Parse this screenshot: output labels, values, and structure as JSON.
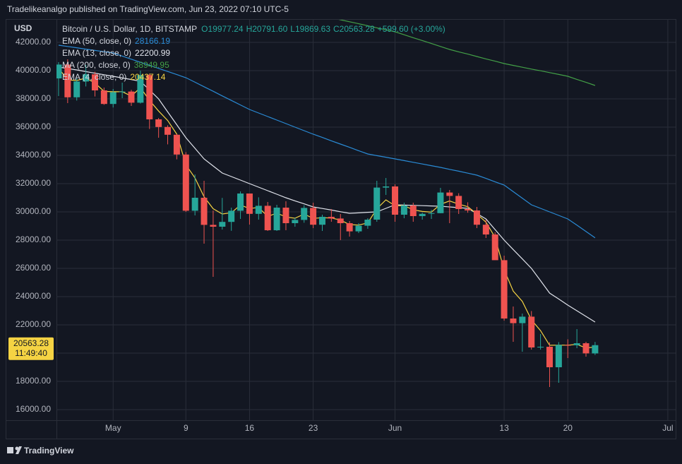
{
  "header": {
    "published": "Tradelikeanalgo published on TradingView.com, Jun 23, 2022 07:10 UTC-5"
  },
  "footer": {
    "brand": "TradingView"
  },
  "chart_data": {
    "type": "candlestick",
    "title": "Bitcoin / U.S. Dollar, 1D, BITSTAMP",
    "ohlc_text": [
      "O19977.24",
      "H20791.60",
      "L19869.63",
      "C20563.28",
      "+599.60 (+3.00%)"
    ],
    "y_axis_label": "USD",
    "up_color": "#26a69a",
    "down_color": "#ef5350",
    "open": [
      39450,
      40430,
      38110,
      39230,
      39740,
      38600,
      37640,
      38470,
      38520,
      37730,
      39690,
      36550,
      36010,
      35460,
      34060,
      30080,
      31000,
      29080,
      28950,
      29290,
      30080,
      31300,
      29860,
      30430,
      28700,
      30300,
      29200,
      29430,
      30280,
      29090,
      29650,
      29530,
      29200,
      28620,
      29020,
      29450,
      31720,
      31800,
      29800,
      30450,
      29700,
      29860,
      29910,
      31370,
      31130,
      30200,
      30100,
      29090,
      28400,
      26580,
      22450,
      22120,
      22580,
      20400,
      20450,
      19000,
      20580,
      20560,
      20700,
      19977.24
    ],
    "high": [
      40600,
      40800,
      39450,
      40400,
      39920,
      38800,
      38700,
      39150,
      38640,
      40000,
      39790,
      36650,
      36130,
      35500,
      34230,
      32650,
      32200,
      30100,
      30990,
      30300,
      31450,
      31300,
      31030,
      30700,
      30500,
      30750,
      29600,
      30470,
      30650,
      29800,
      30200,
      29850,
      29350,
      29200,
      29550,
      32200,
      32400,
      31950,
      30650,
      30650,
      29950,
      30150,
      31700,
      31550,
      31320,
      30680,
      30350,
      29450,
      28550,
      26900,
      23300,
      22800,
      22980,
      21350,
      20770,
      20780,
      20980,
      21700,
      20800,
      20791.6
    ],
    "low": [
      38200,
      37700,
      37880,
      38880,
      38170,
      37580,
      37390,
      38050,
      37500,
      37670,
      35870,
      35250,
      34780,
      33720,
      30000,
      29750,
      27750,
      25400,
      28750,
      28660,
      29500,
      29100,
      29450,
      28650,
      28650,
      28700,
      28950,
      29230,
      28850,
      28650,
      29300,
      28000,
      28250,
      28500,
      28800,
      29300,
      31200,
      29300,
      29550,
      29300,
      29450,
      29500,
      29900,
      29200,
      29850,
      29940,
      28850,
      28150,
      26600,
      22300,
      20800,
      20100,
      20250,
      20250,
      17600,
      17900,
      19650,
      20350,
      19750,
      19869.63
    ],
    "close": [
      40430,
      38110,
      39230,
      39740,
      38600,
      37640,
      38470,
      38520,
      37730,
      39690,
      36550,
      36010,
      35460,
      34060,
      30080,
      31000,
      29080,
      28950,
      29290,
      30080,
      31300,
      29860,
      30430,
      28700,
      30300,
      29200,
      29430,
      30280,
      29090,
      29650,
      29530,
      29200,
      28620,
      29020,
      29450,
      31720,
      31800,
      29800,
      30450,
      29700,
      29860,
      29910,
      31370,
      31130,
      30200,
      30100,
      29090,
      28400,
      26580,
      22450,
      22120,
      22580,
      20400,
      20450,
      19000,
      20580,
      20560,
      20700,
      19980,
      20563.28
    ],
    "series": [
      {
        "name": "EMA (50, close, 0)",
        "color": "#2a8bd6",
        "last_label": "28166.19",
        "values": [
          41800,
          41710,
          41620,
          41520,
          41430,
          41340,
          41250,
          41030,
          40810,
          40590,
          40380,
          40160,
          39940,
          39720,
          39500,
          39180,
          38860,
          38540,
          38210,
          37890,
          37570,
          37250,
          37000,
          36750,
          36500,
          36250,
          36000,
          35750,
          35500,
          35270,
          35030,
          34800,
          34570,
          34330,
          34100,
          33980,
          33870,
          33750,
          33630,
          33510,
          33390,
          33270,
          33150,
          33010,
          32880,
          32740,
          32600,
          32370,
          32130,
          31900,
          31430,
          30970,
          30500,
          30250,
          30000,
          29750,
          29500,
          29060,
          28610,
          28166.19
        ]
      },
      {
        "name": "EMA (13, close, 0)",
        "color": "#e0e3eb",
        "last_label": "22200.99",
        "values": [
          40250,
          40150,
          40050,
          39930,
          39820,
          39710,
          39600,
          39480,
          39370,
          39250,
          38630,
          38000,
          37080,
          36170,
          35250,
          34500,
          33750,
          33250,
          32750,
          32500,
          32250,
          32000,
          31750,
          31500,
          31250,
          31000,
          30780,
          30570,
          30350,
          30240,
          30130,
          30010,
          29900,
          29930,
          29970,
          30000,
          30250,
          30500,
          30480,
          30460,
          30440,
          30420,
          30400,
          30350,
          30300,
          30250,
          29880,
          29500,
          28750,
          28000,
          27330,
          26670,
          26000,
          25130,
          24250,
          23830,
          23400,
          23000,
          22600,
          22200.99
        ]
      },
      {
        "name": "MA (200, close, 0)",
        "color": "#43a047",
        "last_label": "38949.95",
        "values": [
          null,
          null,
          null,
          null,
          null,
          null,
          null,
          null,
          null,
          null,
          null,
          null,
          null,
          null,
          null,
          null,
          null,
          null,
          null,
          null,
          null,
          null,
          null,
          null,
          null,
          null,
          null,
          null,
          null,
          null,
          43750,
          43600,
          43460,
          43320,
          43180,
          43030,
          42890,
          42750,
          42540,
          42330,
          42130,
          41920,
          41710,
          41500,
          41330,
          41170,
          41000,
          40830,
          40670,
          40500,
          40370,
          40240,
          40110,
          39990,
          39860,
          39730,
          39600,
          39380,
          39170,
          38949.95
        ]
      },
      {
        "name": "EMA (4, close, 0)",
        "color": "#f5d343",
        "last_label": "20437.14",
        "values": [
          40170,
          39346,
          39300,
          39476,
          39126,
          38532,
          38507,
          38512,
          38199,
          38795,
          37897,
          37142,
          36469,
          35505,
          33335,
          32401,
          31073,
          30224,
          29850,
          29942,
          30485,
          30235,
          30313,
          29668,
          29921,
          29633,
          29552,
          29843,
          29542,
          29585,
          29563,
          29418,
          29099,
          29067,
          29220,
          30220,
          30852,
          30431,
          30439,
          30143,
          30030,
          29982,
          30537,
          30774,
          30544,
          30366,
          29856,
          29274,
          28196,
          25898,
          24387,
          23664,
          22358,
          21595,
          20557,
          20566,
          20564,
          20618,
          20363,
          20437.14
        ]
      }
    ],
    "current_price": 20563.28,
    "countdown": "11:49:40",
    "price_label_color": "#f5d343",
    "ylim": [
      15250,
      43600
    ],
    "yticks": [
      {
        "value": 16000,
        "label": "16000.00"
      },
      {
        "value": 18000,
        "label": "18000.00"
      },
      {
        "value": 20000,
        "label": "20000.00"
      },
      {
        "value": 22000,
        "label": "22000.00"
      },
      {
        "value": 24000,
        "label": "24000.00"
      },
      {
        "value": 26000,
        "label": "26000.00"
      },
      {
        "value": 28000,
        "label": "28000.00"
      },
      {
        "value": 30000,
        "label": "30000.00"
      },
      {
        "value": 32000,
        "label": "32000.00"
      },
      {
        "value": 34000,
        "label": "34000.00"
      },
      {
        "value": 36000,
        "label": "36000.00"
      },
      {
        "value": 38000,
        "label": "38000.00"
      },
      {
        "value": 40000,
        "label": "40000.00"
      },
      {
        "value": 42000,
        "label": "42000.00"
      }
    ],
    "xlim": [
      -0.23,
      67.86
    ],
    "xticks": [
      {
        "value": 6,
        "label": "May"
      },
      {
        "value": 14,
        "label": "9"
      },
      {
        "value": 21,
        "label": "16"
      },
      {
        "value": 28,
        "label": "23"
      },
      {
        "value": 37,
        "label": "Jun"
      },
      {
        "value": 49,
        "label": "13"
      },
      {
        "value": 56,
        "label": "20"
      },
      {
        "value": 67,
        "label": "Jul"
      }
    ],
    "grid": true
  }
}
